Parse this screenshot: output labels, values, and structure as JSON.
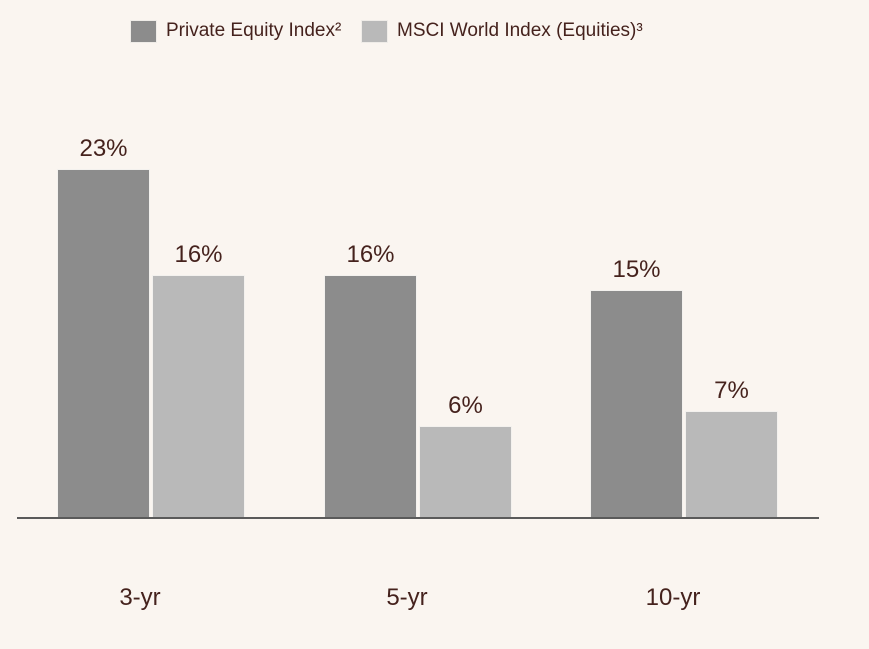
{
  "legend": {
    "items": [
      {
        "label": "Private Equity Index²",
        "color": "#8c8c8c",
        "slug": "private-equity-index"
      },
      {
        "label": "MSCI World Index (Equities)³",
        "color": "#b9b9b9",
        "slug": "msci-world-index"
      }
    ]
  },
  "chart_data": {
    "type": "bar",
    "title": "",
    "categories": [
      "3-yr",
      "5-yr",
      "10-yr"
    ],
    "series": [
      {
        "name": "Private Equity Index²",
        "slug": "private-equity-index",
        "color": "#8c8c8c",
        "values": [
          23,
          16,
          15
        ],
        "data_labels": [
          "23%",
          "16%",
          "15%"
        ]
      },
      {
        "name": "MSCI World Index (Equities)³",
        "slug": "msci-world-index",
        "color": "#b9b9b9",
        "values": [
          16,
          6,
          7
        ],
        "data_labels": [
          "16%",
          "6%",
          "7%"
        ]
      }
    ],
    "xlabel": "",
    "ylabel": "",
    "ylim": [
      0,
      23
    ],
    "grid": false,
    "legend_position": "top",
    "data_label_suffix": "%"
  },
  "colors": {
    "background": "#faf5f0",
    "axis_line": "#5a5a5a",
    "text": "#45221d"
  }
}
